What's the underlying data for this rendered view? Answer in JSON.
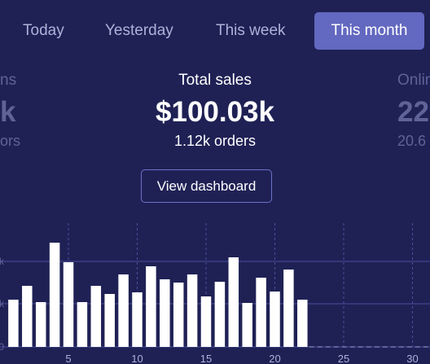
{
  "tabs": [
    {
      "label": "Today",
      "active": false
    },
    {
      "label": "Yesterday",
      "active": false
    },
    {
      "label": "This week",
      "active": false
    },
    {
      "label": "This month",
      "active": true
    }
  ],
  "stats": {
    "left": {
      "label": "ns",
      "value": "k",
      "sub": "ors"
    },
    "center": {
      "label": "Total sales",
      "value": "$100.03k",
      "sub": "1.12k orders"
    },
    "right": {
      "label": "Onlin",
      "value": "22",
      "sub": "20.6"
    }
  },
  "dashboard_button": "View dashboard",
  "colors": {
    "background": "#1f2155",
    "active_tab": "#6368c0",
    "bar": "#ffffff",
    "gridline": "#4a4f9a"
  },
  "chart_data": {
    "type": "bar",
    "x": [
      1,
      2,
      3,
      4,
      5,
      6,
      7,
      8,
      9,
      10,
      11,
      12,
      13,
      14,
      15,
      16,
      17,
      18,
      19,
      20,
      21,
      22
    ],
    "values": [
      58,
      75,
      55,
      128,
      104,
      55,
      75,
      65,
      89,
      67,
      99,
      83,
      79,
      89,
      62,
      80,
      110,
      54,
      85,
      68,
      95,
      58
    ],
    "xticks": [
      "5",
      "10",
      "15",
      "20",
      "25",
      "30"
    ],
    "xtick_values": [
      5,
      10,
      15,
      20,
      25,
      30
    ],
    "yticks": [
      "k",
      "k",
      "0"
    ],
    "ytick_values": [
      105,
      53,
      0
    ],
    "xlim": [
      0,
      31
    ],
    "ylim": [
      0,
      160
    ],
    "grid": true
  }
}
